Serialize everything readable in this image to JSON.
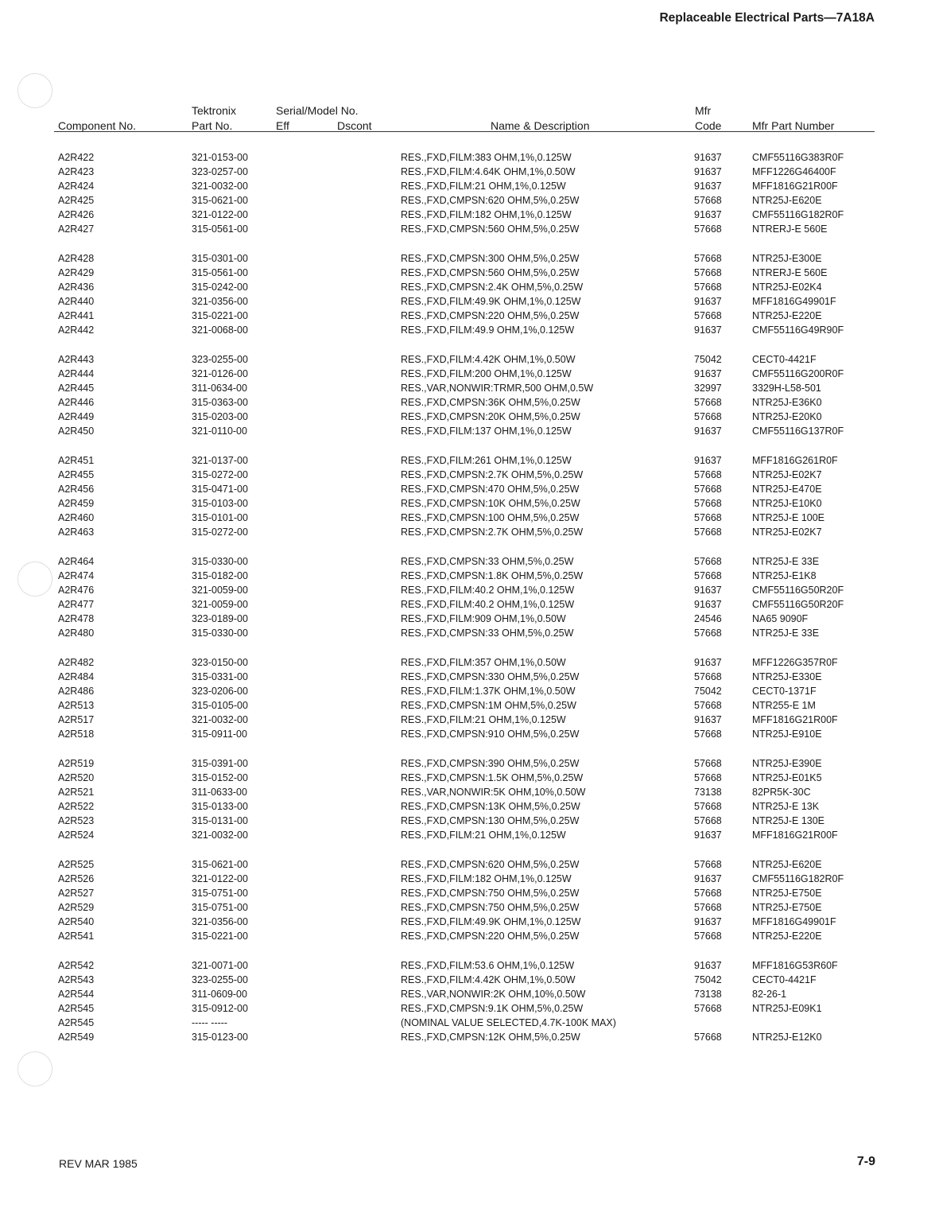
{
  "header": {
    "title": "Replaceable Electrical Parts—7A18A"
  },
  "columns": {
    "component": "Component No.",
    "tek_top": "Tektronix",
    "tek_bottom": "Part No.",
    "serial_top": "Serial/Model No.",
    "eff": "Eff",
    "dscont": "Dscont",
    "description": "Name & Description",
    "mfr_top": "Mfr",
    "mfr_bottom": "Code",
    "mfr_part": "Mfr Part Number"
  },
  "groups": [
    [
      [
        "A2R422",
        "321-0153-00",
        "",
        "",
        "RES.,FXD,FILM:383 OHM,1%,0.125W",
        "91637",
        "CMF55116G383R0F"
      ],
      [
        "A2R423",
        "323-0257-00",
        "",
        "",
        "RES.,FXD,FILM:4.64K OHM,1%,0.50W",
        "91637",
        "MFF1226G46400F"
      ],
      [
        "A2R424",
        "321-0032-00",
        "",
        "",
        "RES.,FXD,FILM:21 OHM,1%,0.125W",
        "91637",
        "MFF1816G21R00F"
      ],
      [
        "A2R425",
        "315-0621-00",
        "",
        "",
        "RES.,FXD,CMPSN:620 OHM,5%,0.25W",
        "57668",
        "NTR25J-E620E"
      ],
      [
        "A2R426",
        "321-0122-00",
        "",
        "",
        "RES.,FXD,FILM:182 OHM,1%,0.125W",
        "91637",
        "CMF55116G182R0F"
      ],
      [
        "A2R427",
        "315-0561-00",
        "",
        "",
        "RES.,FXD,CMPSN:560 OHM,5%,0.25W",
        "57668",
        "NTRERJ-E 560E"
      ]
    ],
    [
      [
        "A2R428",
        "315-0301-00",
        "",
        "",
        "RES.,FXD,CMPSN:300 OHM,5%,0.25W",
        "57668",
        "NTR25J-E300E"
      ],
      [
        "A2R429",
        "315-0561-00",
        "",
        "",
        "RES.,FXD,CMPSN:560 OHM,5%,0.25W",
        "57668",
        "NTRERJ-E 560E"
      ],
      [
        "A2R436",
        "315-0242-00",
        "",
        "",
        "RES.,FXD,CMPSN:2.4K OHM,5%,0.25W",
        "57668",
        "NTR25J-E02K4"
      ],
      [
        "A2R440",
        "321-0356-00",
        "",
        "",
        "RES.,FXD,FILM:49.9K OHM,1%,0.125W",
        "91637",
        "MFF1816G49901F"
      ],
      [
        "A2R441",
        "315-0221-00",
        "",
        "",
        "RES.,FXD,CMPSN:220 OHM,5%,0.25W",
        "57668",
        "NTR25J-E220E"
      ],
      [
        "A2R442",
        "321-0068-00",
        "",
        "",
        "RES.,FXD,FILM:49.9 OHM,1%,0.125W",
        "91637",
        "CMF55116G49R90F"
      ]
    ],
    [
      [
        "A2R443",
        "323-0255-00",
        "",
        "",
        "RES.,FXD,FILM:4.42K OHM,1%,0.50W",
        "75042",
        "CECT0-4421F"
      ],
      [
        "A2R444",
        "321-0126-00",
        "",
        "",
        "RES.,FXD,FILM:200 OHM,1%,0.125W",
        "91637",
        "CMF55116G200R0F"
      ],
      [
        "A2R445",
        "311-0634-00",
        "",
        "",
        "RES.,VAR,NONWIR:TRMR,500 OHM,0.5W",
        "32997",
        "3329H-L58-501"
      ],
      [
        "A2R446",
        "315-0363-00",
        "",
        "",
        "RES.,FXD,CMPSN:36K OHM,5%,0.25W",
        "57668",
        "NTR25J-E36K0"
      ],
      [
        "A2R449",
        "315-0203-00",
        "",
        "",
        "RES.,FXD,CMPSN:20K OHM,5%,0.25W",
        "57668",
        "NTR25J-E20K0"
      ],
      [
        "A2R450",
        "321-0110-00",
        "",
        "",
        "RES.,FXD,FILM:137 OHM,1%,0.125W",
        "91637",
        "CMF55116G137R0F"
      ]
    ],
    [
      [
        "A2R451",
        "321-0137-00",
        "",
        "",
        "RES.,FXD,FILM:261 OHM,1%,0.125W",
        "91637",
        "MFF1816G261R0F"
      ],
      [
        "A2R455",
        "315-0272-00",
        "",
        "",
        "RES.,FXD,CMPSN:2.7K OHM,5%,0.25W",
        "57668",
        "NTR25J-E02K7"
      ],
      [
        "A2R456",
        "315-0471-00",
        "",
        "",
        "RES.,FXD,CMPSN:470 OHM,5%,0.25W",
        "57668",
        "NTR25J-E470E"
      ],
      [
        "A2R459",
        "315-0103-00",
        "",
        "",
        "RES.,FXD,CMPSN:10K OHM,5%,0.25W",
        "57668",
        "NTR25J-E10K0"
      ],
      [
        "A2R460",
        "315-0101-00",
        "",
        "",
        "RES.,FXD,CMPSN:100 OHM,5%,0.25W",
        "57668",
        "NTR25J-E 100E"
      ],
      [
        "A2R463",
        "315-0272-00",
        "",
        "",
        "RES.,FXD,CMPSN:2.7K OHM,5%,0.25W",
        "57668",
        "NTR25J-E02K7"
      ]
    ],
    [
      [
        "A2R464",
        "315-0330-00",
        "",
        "",
        "RES.,FXD,CMPSN:33 OHM,5%,0.25W",
        "57668",
        "NTR25J-E 33E"
      ],
      [
        "A2R474",
        "315-0182-00",
        "",
        "",
        "RES.,FXD,CMPSN:1.8K OHM,5%,0.25W",
        "57668",
        "NTR25J-E1K8"
      ],
      [
        "A2R476",
        "321-0059-00",
        "",
        "",
        "RES.,FXD,FILM:40.2 OHM,1%,0.125W",
        "91637",
        "CMF55116G50R20F"
      ],
      [
        "A2R477",
        "321-0059-00",
        "",
        "",
        "RES.,FXD,FILM:40.2 OHM,1%,0.125W",
        "91637",
        "CMF55116G50R20F"
      ],
      [
        "A2R478",
        "323-0189-00",
        "",
        "",
        "RES.,FXD,FILM:909 OHM,1%,0.50W",
        "24546",
        "NA65 9090F"
      ],
      [
        "A2R480",
        "315-0330-00",
        "",
        "",
        "RES.,FXD,CMPSN:33 OHM,5%,0.25W",
        "57668",
        "NTR25J-E 33E"
      ]
    ],
    [
      [
        "A2R482",
        "323-0150-00",
        "",
        "",
        "RES.,FXD,FILM:357 OHM,1%,0.50W",
        "91637",
        "MFF1226G357R0F"
      ],
      [
        "A2R484",
        "315-0331-00",
        "",
        "",
        "RES.,FXD,CMPSN:330 OHM,5%,0.25W",
        "57668",
        "NTR25J-E330E"
      ],
      [
        "A2R486",
        "323-0206-00",
        "",
        "",
        "RES.,FXD,FILM:1.37K OHM,1%,0.50W",
        "75042",
        "CECT0-1371F"
      ],
      [
        "A2R513",
        "315-0105-00",
        "",
        "",
        "RES.,FXD,CMPSN:1M OHM,5%,0.25W",
        "57668",
        "NTR255-E 1M"
      ],
      [
        "A2R517",
        "321-0032-00",
        "",
        "",
        "RES.,FXD,FILM:21 OHM,1%,0.125W",
        "91637",
        "MFF1816G21R00F"
      ],
      [
        "A2R518",
        "315-0911-00",
        "",
        "",
        "RES.,FXD,CMPSN:910 OHM,5%,0.25W",
        "57668",
        "NTR25J-E910E"
      ]
    ],
    [
      [
        "A2R519",
        "315-0391-00",
        "",
        "",
        "RES.,FXD,CMPSN:390 OHM,5%,0.25W",
        "57668",
        "NTR25J-E390E"
      ],
      [
        "A2R520",
        "315-0152-00",
        "",
        "",
        "RES.,FXD,CMPSN:1.5K OHM,5%,0.25W",
        "57668",
        "NTR25J-E01K5"
      ],
      [
        "A2R521",
        "311-0633-00",
        "",
        "",
        "RES.,VAR,NONWIR:5K OHM,10%,0.50W",
        "73138",
        "82PR5K-30C"
      ],
      [
        "A2R522",
        "315-0133-00",
        "",
        "",
        "RES.,FXD,CMPSN:13K OHM,5%,0.25W",
        "57668",
        "NTR25J-E 13K"
      ],
      [
        "A2R523",
        "315-0131-00",
        "",
        "",
        "RES.,FXD,CMPSN:130 OHM,5%,0.25W",
        "57668",
        "NTR25J-E 130E"
      ],
      [
        "A2R524",
        "321-0032-00",
        "",
        "",
        "RES.,FXD,FILM:21 OHM,1%,0.125W",
        "91637",
        "MFF1816G21R00F"
      ]
    ],
    [
      [
        "A2R525",
        "315-0621-00",
        "",
        "",
        "RES.,FXD,CMPSN:620 OHM,5%,0.25W",
        "57668",
        "NTR25J-E620E"
      ],
      [
        "A2R526",
        "321-0122-00",
        "",
        "",
        "RES.,FXD,FILM:182 OHM,1%,0.125W",
        "91637",
        "CMF55116G182R0F"
      ],
      [
        "A2R527",
        "315-0751-00",
        "",
        "",
        "RES.,FXD,CMPSN:750 OHM,5%,0.25W",
        "57668",
        "NTR25J-E750E"
      ],
      [
        "A2R529",
        "315-0751-00",
        "",
        "",
        "RES.,FXD,CMPSN:750 OHM,5%,0.25W",
        "57668",
        "NTR25J-E750E"
      ],
      [
        "A2R540",
        "321-0356-00",
        "",
        "",
        "RES.,FXD,FILM:49.9K OHM,1%,0.125W",
        "91637",
        "MFF1816G49901F"
      ],
      [
        "A2R541",
        "315-0221-00",
        "",
        "",
        "RES.,FXD,CMPSN:220 OHM,5%,0.25W",
        "57668",
        "NTR25J-E220E"
      ]
    ],
    [
      [
        "A2R542",
        "321-0071-00",
        "",
        "",
        "RES.,FXD,FILM:53.6 OHM,1%,0.125W",
        "91637",
        "MFF1816G53R60F"
      ],
      [
        "A2R543",
        "323-0255-00",
        "",
        "",
        "RES.,FXD,FILM:4.42K OHM,1%,0.50W",
        "75042",
        "CECT0-4421F"
      ],
      [
        "A2R544",
        "311-0609-00",
        "",
        "",
        "RES.,VAR,NONWIR:2K OHM,10%,0.50W",
        "73138",
        "82-26-1"
      ],
      [
        "A2R545",
        "315-0912-00",
        "",
        "",
        "RES.,FXD,CMPSN:9.1K OHM,5%,0.25W",
        "57668",
        "NTR25J-E09K1"
      ],
      [
        "A2R545",
        "----- -----",
        "",
        "",
        "(NOMINAL VALUE SELECTED,4.7K-100K MAX)",
        "",
        ""
      ],
      [
        "A2R549",
        "315-0123-00",
        "",
        "",
        "RES.,FXD,CMPSN:12K OHM,5%,0.25W",
        "57668",
        "NTR25J-E12K0"
      ]
    ]
  ],
  "footer": {
    "revision": "REV MAR 1985",
    "page": "7-9"
  }
}
